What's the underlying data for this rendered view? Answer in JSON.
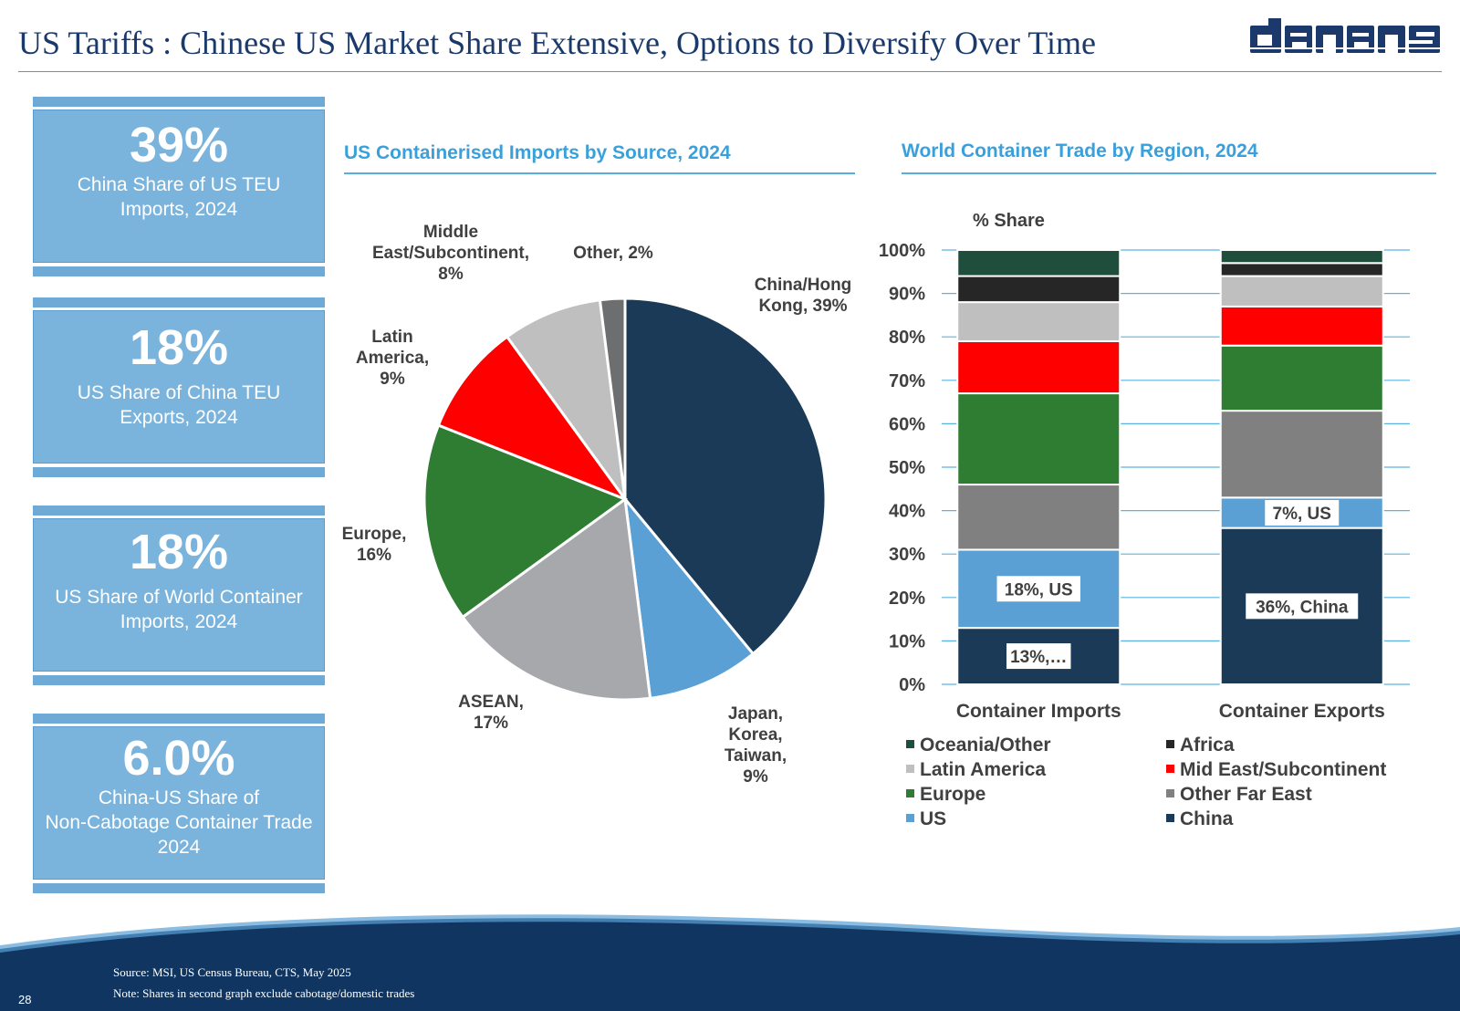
{
  "title": "US Tariffs : Chinese US Market Share Extensive, Options to Diversify Over Time",
  "logo_text": "danaos",
  "kpis": [
    {
      "value": "39%",
      "line1": "China Share of US TEU",
      "line2": "Imports, 2024",
      "line3": ""
    },
    {
      "value": "18%",
      "line1": "US Share of China TEU",
      "line2": "Exports, 2024",
      "line3": ""
    },
    {
      "value": "18%",
      "line1": "US Share of World Container",
      "line2": "Imports, 2024",
      "line3": ""
    },
    {
      "value": "6.0%",
      "line1": "China-US Share of",
      "line2": "Non-Cabotage Container Trade",
      "line3": "2024"
    }
  ],
  "colors": {
    "china": "#1b3a57",
    "japan": "#5aa0d4",
    "asean": "#a6a8ab",
    "europe": "#2e7d32",
    "latam": "#ff0000",
    "mideast": "#bfbfbf",
    "other": "#6d6e70",
    "oceania": "#1f4e3d",
    "africa": "#262626",
    "latin_america": "#bfbfbf",
    "mid_east": "#ff0000",
    "europe_bar": "#2e7d32",
    "other_far_east": "#808080",
    "us": "#5aa0d4",
    "china_bar": "#1b3a57",
    "accent": "#3aa0dc",
    "navy": "#0f3560"
  },
  "chart_data": [
    {
      "type": "pie",
      "title": "US Containerised Imports by Source, 2024",
      "slices": [
        {
          "name": "China/Hong Kong",
          "label_lines": [
            "China/Hong",
            "Kong, 39%"
          ],
          "value": 39,
          "color": "#1b3a57"
        },
        {
          "name": "Japan, Korea, Taiwan",
          "label_lines": [
            "Japan,",
            "Korea,",
            "Taiwan,",
            "9%"
          ],
          "value": 9,
          "color": "#5aa0d4"
        },
        {
          "name": "ASEAN",
          "label_lines": [
            "ASEAN,",
            "17%"
          ],
          "value": 17,
          "color": "#a6a8ab"
        },
        {
          "name": "Europe",
          "label_lines": [
            "Europe,",
            "16%"
          ],
          "value": 16,
          "color": "#2e7d32"
        },
        {
          "name": "Latin America",
          "label_lines": [
            "Latin",
            "America,",
            "9%"
          ],
          "value": 9,
          "color": "#ff0000"
        },
        {
          "name": "Middle East/Subcontinent",
          "label_lines": [
            "Middle",
            "East/Subcontinent,",
            "8%"
          ],
          "value": 8,
          "color": "#bfbfbf"
        },
        {
          "name": "Other",
          "label_lines": [
            "Other, 2%"
          ],
          "value": 2,
          "color": "#6d6e70"
        }
      ]
    },
    {
      "type": "stacked_bar",
      "title": "World Container Trade by Region, 2024",
      "ylabel": "% Share",
      "ylim": [
        0,
        100
      ],
      "yticks": [
        "0%",
        "10%",
        "20%",
        "30%",
        "40%",
        "50%",
        "60%",
        "70%",
        "80%",
        "90%",
        "100%"
      ],
      "categories": [
        "Container Imports",
        "Container Exports"
      ],
      "series": [
        {
          "name": "China",
          "color": "#1b3a57",
          "values": [
            13,
            36
          ],
          "labels": [
            "13%,…",
            "36%, China"
          ]
        },
        {
          "name": "US",
          "color": "#5aa0d4",
          "values": [
            18,
            7
          ],
          "labels": [
            "18%, US",
            "7%, US"
          ]
        },
        {
          "name": "Other Far East",
          "color": "#808080",
          "values": [
            15,
            20
          ],
          "labels": [
            "",
            ""
          ]
        },
        {
          "name": "Europe",
          "color": "#2e7d32",
          "values": [
            21,
            15
          ],
          "labels": [
            "",
            ""
          ]
        },
        {
          "name": "Mid East/Subcontinent",
          "color": "#ff0000",
          "values": [
            12,
            9
          ],
          "labels": [
            "",
            ""
          ]
        },
        {
          "name": "Latin America",
          "color": "#bfbfbf",
          "values": [
            9,
            7
          ],
          "labels": [
            "",
            ""
          ]
        },
        {
          "name": "Africa",
          "color": "#262626",
          "values": [
            6,
            3
          ],
          "labels": [
            "",
            ""
          ]
        },
        {
          "name": "Oceania/Other",
          "color": "#1f4e3d",
          "values": [
            6,
            3
          ],
          "labels": [
            "",
            ""
          ]
        }
      ],
      "legend": [
        [
          "Oceania/Other",
          "Africa"
        ],
        [
          "Latin America",
          "Mid East/Subcontinent"
        ],
        [
          "Europe",
          "Other Far East"
        ],
        [
          "US",
          "China"
        ]
      ]
    }
  ],
  "footer": {
    "source": "Source: MSI, US Census Bureau, CTS, May 2025",
    "note": "Note: Shares in second graph exclude cabotage/domestic trades",
    "page": "28"
  }
}
